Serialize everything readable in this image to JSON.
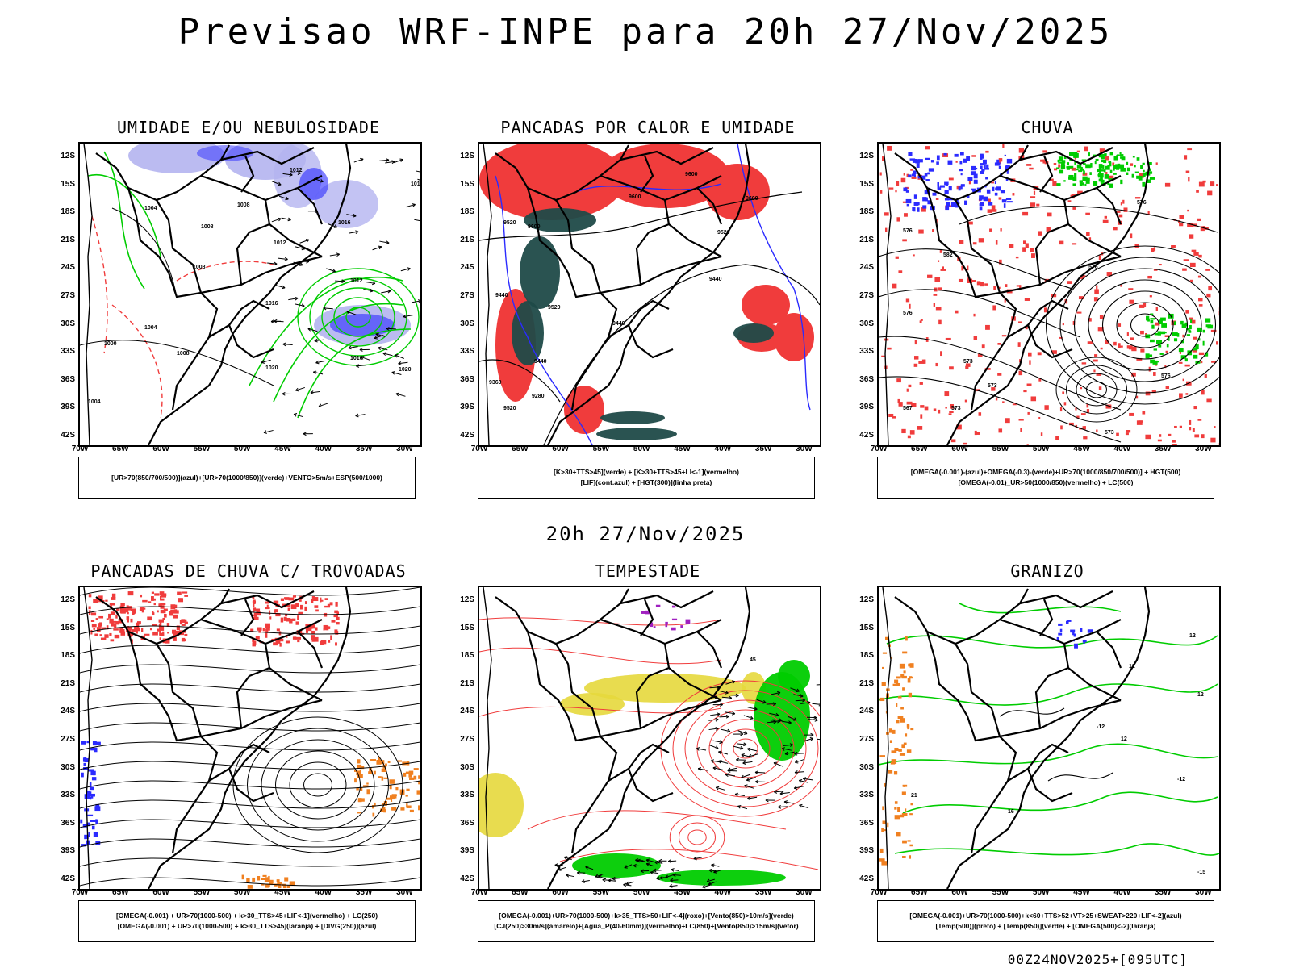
{
  "title": "Previsao WRF-INPE  para 20h 27/Nov/2025",
  "mid_title": "20h 27/Nov/2025",
  "footer": "00Z24NOV2025+[095UTC]",
  "axes": {
    "lat_labels": [
      "12S",
      "15S",
      "18S",
      "21S",
      "24S",
      "27S",
      "30S",
      "33S",
      "36S",
      "39S",
      "42S"
    ],
    "lon_labels": [
      "70W",
      "65W",
      "60W",
      "55W",
      "50W",
      "45W",
      "40W",
      "35W",
      "30W"
    ]
  },
  "colors": {
    "red": "#f03c3c",
    "green": "#00cc00",
    "blue": "#2b2bff",
    "lavender": "#b4b4f0",
    "darkteal": "#1f4a48",
    "yellow": "#e6d83c",
    "orange": "#f08020",
    "purple": "#a020c0"
  },
  "panels": [
    {
      "title": "UMIDADE E/OU NEBULOSIDADE",
      "theme": "umidade",
      "legend": [
        "[UR>70(850/700/500)](azul)+[UR>70(1000/850)](verde)+VENTO>5m/s+ESP(500/1000)"
      ],
      "contour_labels": [
        "1012",
        "1016",
        "1004",
        "1008",
        "1008",
        "1012",
        "1016",
        "1016",
        "1012",
        "1016",
        "1004",
        "1000",
        "1008",
        "1020",
        "1020",
        "1004",
        "1008"
      ]
    },
    {
      "title": "PANCADAS POR CALOR E UMIDADE",
      "theme": "pancadas",
      "legend": [
        "[K>30+TTS>45](verde) + [K>30+TTS>45+LI<-1](vermelho)",
        "[LIF](cont.azul) + [HGT(300)](linha preta)"
      ],
      "contour_labels": [
        "9600",
        "9600",
        "9600",
        "9520",
        "9600",
        "9520",
        "9440",
        "9440",
        "9520",
        "9440",
        "9440",
        "9360",
        "9280",
        "9520"
      ]
    },
    {
      "title": "CHUVA",
      "theme": "chuva",
      "legend": [
        "[OMEGA(-0.001)-(azul)+OMEGA(-0.3)-(verde)+UR>70(1000/850/700/500)] + HGT(500)",
        "[OMEGA(-0.01)_UR>50(1000/850)(vermelho) + LC(500)"
      ],
      "contour_labels": [
        "576",
        "582",
        "576",
        "576",
        "573",
        "576",
        "573",
        "567",
        "573",
        "576",
        "573"
      ]
    },
    {
      "title": "PANCADAS DE CHUVA C/ TROVOADAS",
      "theme": "trovoadas",
      "legend": [
        "[OMEGA(-0.001) + UR>70(1000-500) + k>30_TTS>45+LIF<-1](vermelho) + LC(250)",
        "[OMEGA(-0.001) + UR>70(1000-500) + k>30_TTS>45](laranja) + [DIVG(250)](azul)"
      ],
      "contour_labels": []
    },
    {
      "title": "TEMPESTADE",
      "theme": "tempestade",
      "legend": [
        "[OMEGA(-0.001)+UR>70(1000-500)+k>35_TTS>50+LIF<-4](roxo)+[Vento(850)>10m/s](verde)",
        "[CJ(250)>30m/s](amarelo)+[Agua_P(40-60mm)](vermelho)+LC(850)+[Vento(850)>15m/s](vetor)"
      ],
      "contour_labels": [
        "45"
      ]
    },
    {
      "title": "GRANIZO",
      "theme": "granizo",
      "legend": [
        "[OMEGA(-0.001)+UR>70(1000-500)+k<60+TTS>52+VT>25+SWEAT>220+LIF<-2](azul)",
        "[Temp(500)](preto) + [Temp(850)](verde) + [OMEGA(500)<-2](laranja)"
      ],
      "contour_labels": [
        "12",
        "12",
        "12",
        "-12",
        "12",
        "-12",
        "21",
        "16",
        "-15"
      ]
    }
  ]
}
